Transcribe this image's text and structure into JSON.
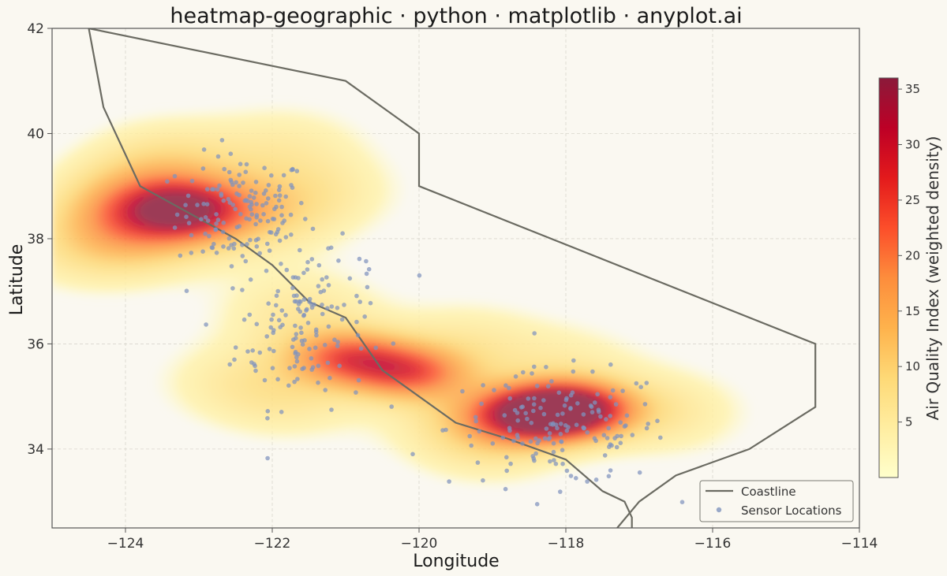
{
  "chart_data": {
    "type": "heatmap",
    "title": "heatmap-geographic · python · matplotlib · anyplot.ai",
    "xlabel": "Longitude",
    "ylabel": "Latitude",
    "xlim": [
      -125,
      -114
    ],
    "ylim": [
      32.5,
      42
    ],
    "xticks": [
      -124,
      -122,
      -120,
      -118,
      -116,
      -114
    ],
    "xtick_labels": [
      "−124",
      "−122",
      "−120",
      "−118",
      "−116",
      "−114"
    ],
    "yticks": [
      34,
      36,
      38,
      40,
      42
    ],
    "ytick_labels": [
      "34",
      "36",
      "38",
      "40",
      "42"
    ],
    "grid": true,
    "legend_position": "bottom-right",
    "colorbar": {
      "label": "Air Quality Index (weighted density)",
      "range": [
        0,
        36
      ],
      "ticks": [
        5,
        10,
        15,
        20,
        25,
        30,
        35
      ],
      "tick_labels": [
        "5",
        "10",
        "15",
        "20",
        "25",
        "30",
        "35"
      ],
      "colormap": [
        "#FFFFCC",
        "#FFEDA0",
        "#FED976",
        "#FEB24C",
        "#FD8D3C",
        "#FC4E2A",
        "#E31A1C",
        "#BD0026",
        "#8B1A3A"
      ]
    },
    "density_hotspots": [
      {
        "lon": -117.95,
        "lat": 34.75,
        "peak": 35
      },
      {
        "lon": -118.5,
        "lat": 34.65,
        "peak": 24
      },
      {
        "lon": -120.15,
        "lat": 35.45,
        "peak": 20
      },
      {
        "lon": -120.95,
        "lat": 35.75,
        "peak": 20
      },
      {
        "lon": -123.2,
        "lat": 38.55,
        "peak": 21
      },
      {
        "lon": -123.75,
        "lat": 38.7,
        "peak": 12
      },
      {
        "lon": -123.8,
        "lat": 38.2,
        "peak": 10
      },
      {
        "lon": -122.3,
        "lat": 38.5,
        "peak": 9
      },
      {
        "lon": -123.4,
        "lat": 39.5,
        "peak": 6
      },
      {
        "lon": -121.6,
        "lat": 36.6,
        "peak": 6
      },
      {
        "lon": -119.0,
        "lat": 34.2,
        "peak": 6
      },
      {
        "lon": -116.7,
        "lat": 34.7,
        "peak": 6
      },
      {
        "lon": -121.8,
        "lat": 39.8,
        "peak": 4
      },
      {
        "lon": -121.3,
        "lat": 38.9,
        "peak": 4
      },
      {
        "lon": -124.5,
        "lat": 37.8,
        "peak": 5
      },
      {
        "lon": -119.4,
        "lat": 36.0,
        "peak": 5
      },
      {
        "lon": -118.0,
        "lat": 35.6,
        "peak": 4
      },
      {
        "lon": -122.5,
        "lat": 35.3,
        "peak": 4
      },
      {
        "lon": -121.7,
        "lat": 35.0,
        "peak": 5
      },
      {
        "lon": -119.3,
        "lat": 34.6,
        "peak": 5
      }
    ],
    "coastline": [
      [
        -124.5,
        42.0
      ],
      [
        -124.3,
        40.5
      ],
      [
        -123.8,
        39.0
      ],
      [
        -122.5,
        38.0
      ],
      [
        -122.0,
        37.5
      ],
      [
        -121.5,
        36.8
      ],
      [
        -121.0,
        36.5
      ],
      [
        -120.5,
        35.5
      ],
      [
        -119.5,
        34.5
      ],
      [
        -118.8,
        34.2
      ],
      [
        -118.0,
        33.8
      ],
      [
        -117.5,
        33.2
      ],
      [
        -117.2,
        33.0
      ],
      [
        -117.1,
        32.7
      ],
      [
        -117.1,
        32.5
      ]
    ],
    "state_border": [
      [
        -124.5,
        42.0
      ],
      [
        -121.0,
        41.0
      ],
      [
        -120.0,
        40.0
      ],
      [
        -120.0,
        39.0
      ],
      [
        -114.6,
        36.0
      ],
      [
        -114.6,
        34.8
      ],
      [
        -115.5,
        34.0
      ],
      [
        -116.5,
        33.5
      ],
      [
        -117.0,
        33.0
      ],
      [
        -117.3,
        32.5
      ]
    ],
    "sensor_clusters": [
      {
        "lon": -122.4,
        "lat": 38.5,
        "sd_lon": 0.45,
        "sd_lat": 0.55,
        "count": 150
      },
      {
        "lon": -121.6,
        "lat": 36.2,
        "sd_lon": 0.45,
        "sd_lat": 0.7,
        "count": 120
      },
      {
        "lon": -118.1,
        "lat": 34.4,
        "sd_lon": 0.75,
        "sd_lat": 0.55,
        "count": 160
      },
      {
        "lon": -121.2,
        "lat": 37.0,
        "sd_lon": 0.5,
        "sd_lat": 0.45,
        "count": 30
      }
    ],
    "legend": [
      "Coastline",
      "Sensor Locations"
    ]
  },
  "colors": {
    "background": "#FAF8F1",
    "line": "#6B6B62",
    "points": "#7F93BE",
    "grid": "#D9D6CD"
  }
}
